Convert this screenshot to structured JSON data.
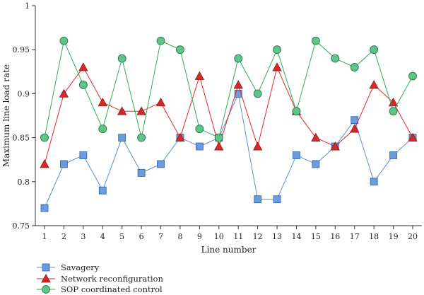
{
  "chart_data": {
    "type": "line",
    "title": "",
    "xlabel": "Line number",
    "ylabel": "Maximum line load rate",
    "x": [
      1,
      2,
      3,
      4,
      5,
      6,
      7,
      8,
      9,
      10,
      11,
      12,
      13,
      14,
      15,
      16,
      17,
      18,
      19,
      20
    ],
    "ylim": [
      0.75,
      1.0
    ],
    "yticks": [
      0.75,
      0.8,
      0.85,
      0.9,
      0.95,
      1
    ],
    "ytick_labels": [
      "0.75",
      "0.8",
      "0.85",
      "0.9",
      "0.95",
      "1"
    ],
    "grid": false,
    "legend_position": "bottom-left",
    "series": [
      {
        "name": "Savagery",
        "marker": "square",
        "color": "#5b8bd4",
        "fill": "#6d9be0",
        "values": [
          0.77,
          0.82,
          0.83,
          0.79,
          0.85,
          0.81,
          0.82,
          0.85,
          0.84,
          0.85,
          0.9,
          0.78,
          0.78,
          0.83,
          0.82,
          0.84,
          0.87,
          0.8,
          0.83,
          0.85
        ]
      },
      {
        "name": "Network reconfiguration",
        "marker": "triangle",
        "color": "#e0262b",
        "fill": "#d42a2a",
        "values": [
          0.82,
          0.9,
          0.93,
          0.89,
          0.88,
          0.88,
          0.89,
          0.85,
          0.92,
          0.84,
          0.91,
          0.84,
          0.93,
          0.88,
          0.85,
          0.84,
          0.86,
          0.91,
          0.89,
          0.85
        ]
      },
      {
        "name": "SOP coordinated control",
        "marker": "circle",
        "color": "#2fae57",
        "fill": "#5ec48a",
        "values": [
          0.85,
          0.96,
          0.91,
          0.86,
          0.94,
          0.85,
          0.96,
          0.95,
          0.86,
          0.85,
          0.94,
          0.9,
          0.95,
          0.88,
          0.96,
          0.94,
          0.93,
          0.95,
          0.88,
          0.92
        ]
      }
    ]
  }
}
